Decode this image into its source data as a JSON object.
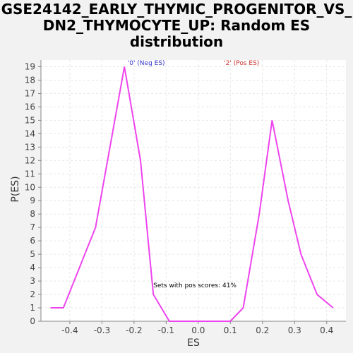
{
  "chart_data": {
    "type": "line",
    "title_lines": [
      "GSE24142_EARLY_THYMIC_PROGENITOR_VS_",
      "DN2_THYMOCYTE_UP: Random ES",
      "distribution"
    ],
    "xlabel": "ES",
    "ylabel": "P(ES)",
    "xlim": [
      -0.49,
      0.46
    ],
    "ylim": [
      0,
      19.5
    ],
    "x_ticks": [
      -0.4,
      -0.3,
      -0.2,
      -0.1,
      0.0,
      0.1,
      0.2,
      0.3,
      0.4
    ],
    "x_tick_labels": [
      "-0.4",
      "-0.3",
      "-0.2",
      "-0.1",
      "0.0",
      "0.1",
      "0.2",
      "0.3",
      "0.4"
    ],
    "y_ticks": [
      0,
      1,
      2,
      3,
      4,
      5,
      6,
      7,
      8,
      9,
      10,
      11,
      12,
      13,
      14,
      15,
      16,
      17,
      18,
      19
    ],
    "y_tick_labels": [
      "0",
      "1",
      "2",
      "3",
      "4",
      "5",
      "6",
      "7",
      "8",
      "9",
      "10",
      "11",
      "12",
      "13",
      "14",
      "15",
      "16",
      "17",
      "18",
      "19"
    ],
    "grid": true,
    "series": [
      {
        "color": "#ee44ee",
        "x": [
          -0.46,
          -0.42,
          -0.32,
          -0.23,
          -0.18,
          -0.14,
          -0.09,
          -0.05,
          0.0,
          0.05,
          0.1,
          0.14,
          0.19,
          0.23,
          0.28,
          0.32,
          0.37,
          0.42
        ],
        "y": [
          1,
          1,
          7,
          19,
          12,
          2,
          0,
          0,
          0,
          0,
          0,
          1,
          8,
          15,
          9,
          5,
          2,
          1
        ]
      }
    ],
    "annotations": [
      {
        "text": "'0' (Neg ES)",
        "color": "#3333cc",
        "x": -0.22
      },
      {
        "text": "'2' (Pos ES)",
        "color": "#cc3333",
        "x": 0.08
      },
      {
        "text": "Sets with pos scores: 41%",
        "color": "#000000",
        "x": -0.14,
        "y": 2
      }
    ]
  },
  "colors": {
    "background": "#f2f2f2",
    "plot_background": "#ffffff",
    "grid": "#e6e6e6",
    "axis": "#888888"
  }
}
